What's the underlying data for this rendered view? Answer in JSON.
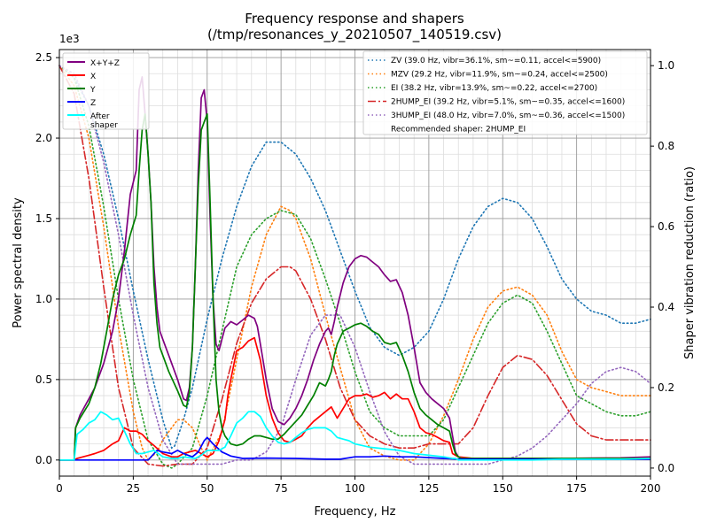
{
  "chart_data": {
    "type": "line",
    "title": "Frequency response and shapers",
    "subtitle": "(/tmp/resonances_y_20210507_140519.csv)",
    "xlabel": "Frequency, Hz",
    "ylabel": "Power spectral density",
    "y2label": "Shaper vibration reduction (ratio)",
    "xlim": [
      0,
      200
    ],
    "ylim": [
      -100,
      2550
    ],
    "y2lim": [
      -0.02,
      1.04
    ],
    "y_offset_label": "1e3",
    "x_ticks": [
      0,
      25,
      50,
      75,
      100,
      125,
      150,
      175,
      200
    ],
    "y_ticks": [
      0,
      500,
      1000,
      1500,
      2000,
      2500
    ],
    "y_tick_labels": [
      "0.0",
      "0.5",
      "1.0",
      "1.5",
      "2.0",
      "2.5"
    ],
    "y2_ticks": [
      0.0,
      0.2,
      0.4,
      0.6,
      0.8,
      1.0
    ],
    "y2_tick_labels": [
      "0.0",
      "0.2",
      "0.4",
      "0.6",
      "0.8",
      "1.0"
    ],
    "grid": true,
    "minor_grid": true,
    "legend_left_position": "top-left",
    "legend_right_position": "top-right",
    "legend_note": "Recommended shaper: 2HUMP_EI",
    "psd_series": [
      {
        "name": "X+Y+Z",
        "color": "#800080",
        "style": "solid",
        "x": [
          0,
          5,
          5.5,
          7,
          10,
          12,
          15,
          18,
          20,
          22,
          24,
          26,
          27,
          28,
          29,
          30,
          31,
          32,
          33,
          34,
          35,
          37,
          40,
          42,
          43,
          44,
          45,
          46,
          47,
          48,
          49,
          50,
          51,
          52,
          53,
          54,
          55,
          56,
          58,
          60,
          62,
          64,
          66,
          67,
          68,
          70,
          72,
          74,
          76,
          78,
          80,
          82,
          84,
          86,
          88,
          90,
          91,
          92,
          93,
          94,
          96,
          98,
          100,
          102,
          104,
          106,
          108,
          110,
          112,
          114,
          116,
          118,
          120,
          122,
          124,
          126,
          128,
          130,
          132,
          133,
          134,
          135,
          136,
          140,
          150,
          160,
          170,
          180,
          190,
          200
        ],
        "y": [
          0,
          0,
          200,
          280,
          380,
          450,
          600,
          800,
          1000,
          1300,
          1650,
          1800,
          2300,
          2380,
          2150,
          1900,
          1600,
          1200,
          950,
          800,
          750,
          650,
          500,
          380,
          370,
          450,
          700,
          1200,
          1800,
          2250,
          2300,
          2100,
          1500,
          1000,
          720,
          680,
          750,
          820,
          860,
          840,
          870,
          900,
          880,
          830,
          720,
          500,
          320,
          240,
          220,
          260,
          320,
          400,
          500,
          620,
          720,
          800,
          820,
          780,
          860,
          950,
          1100,
          1200,
          1250,
          1270,
          1260,
          1230,
          1200,
          1150,
          1110,
          1120,
          1040,
          900,
          700,
          480,
          420,
          380,
          350,
          320,
          260,
          150,
          50,
          20,
          10,
          10,
          10,
          10,
          10,
          12,
          14,
          20
        ]
      },
      {
        "name": "X",
        "color": "#ff0000",
        "style": "solid",
        "x": [
          0,
          5,
          6,
          8,
          10,
          12,
          15,
          18,
          20,
          22,
          24,
          26,
          28,
          30,
          32,
          35,
          38,
          40,
          42,
          44,
          46,
          48,
          50,
          52,
          54,
          56,
          57,
          58,
          60,
          62,
          64,
          66,
          68,
          70,
          72,
          74,
          76,
          78,
          80,
          82,
          84,
          86,
          88,
          90,
          92,
          94,
          96,
          98,
          100,
          102,
          104,
          106,
          108,
          110,
          112,
          114,
          116,
          118,
          120,
          122,
          124,
          126,
          128,
          130,
          132,
          133,
          134,
          135,
          140,
          150,
          160,
          170,
          180,
          190,
          200
        ],
        "y": [
          0,
          0,
          10,
          20,
          30,
          40,
          60,
          100,
          120,
          200,
          180,
          180,
          160,
          120,
          90,
          40,
          20,
          20,
          40,
          50,
          60,
          40,
          20,
          40,
          120,
          250,
          400,
          500,
          680,
          700,
          740,
          760,
          620,
          400,
          260,
          170,
          120,
          110,
          130,
          150,
          200,
          240,
          270,
          300,
          330,
          260,
          320,
          380,
          400,
          400,
          410,
          390,
          400,
          420,
          380,
          410,
          380,
          380,
          300,
          200,
          170,
          160,
          140,
          120,
          110,
          40,
          30,
          20,
          10,
          10,
          10,
          10,
          10,
          10,
          12
        ]
      },
      {
        "name": "Y",
        "color": "#008000",
        "style": "solid",
        "x": [
          0,
          5,
          5.5,
          7,
          10,
          12,
          14,
          16,
          18,
          20,
          22,
          24,
          26,
          27,
          28,
          29,
          30,
          31,
          32,
          33,
          34,
          35,
          37,
          40,
          42,
          43,
          44,
          45,
          46,
          47,
          48,
          49,
          50,
          51,
          52,
          53,
          54,
          55,
          56,
          58,
          60,
          62,
          64,
          66,
          68,
          70,
          72,
          74,
          76,
          78,
          80,
          82,
          84,
          86,
          88,
          90,
          91,
          92,
          93,
          94,
          96,
          98,
          100,
          102,
          104,
          106,
          108,
          110,
          112,
          114,
          116,
          118,
          120,
          122,
          124,
          126,
          128,
          130,
          132,
          133,
          134,
          135,
          136,
          140,
          150,
          160,
          170,
          180,
          190,
          200
        ],
        "y": [
          0,
          0,
          200,
          260,
          350,
          450,
          600,
          800,
          1000,
          1150,
          1250,
          1400,
          1520,
          1800,
          2050,
          2150,
          1900,
          1600,
          1100,
          850,
          700,
          650,
          550,
          430,
          340,
          330,
          420,
          700,
          1200,
          1700,
          2050,
          2100,
          2150,
          1600,
          1000,
          500,
          300,
          200,
          150,
          100,
          90,
          100,
          130,
          150,
          150,
          140,
          130,
          130,
          160,
          200,
          240,
          280,
          340,
          400,
          480,
          460,
          500,
          550,
          650,
          720,
          800,
          820,
          840,
          850,
          830,
          800,
          780,
          730,
          720,
          730,
          650,
          550,
          420,
          320,
          280,
          250,
          220,
          200,
          180,
          100,
          40,
          20,
          10,
          10,
          10,
          10,
          10,
          10,
          10,
          10
        ]
      },
      {
        "name": "Z",
        "color": "#0000ff",
        "style": "solid",
        "x": [
          0,
          5,
          10,
          20,
          30,
          33,
          35,
          38,
          40,
          42,
          45,
          47,
          49,
          50,
          52,
          55,
          58,
          62,
          70,
          80,
          90,
          95,
          100,
          105,
          110,
          115,
          120,
          130,
          135,
          150,
          200
        ],
        "y": [
          0,
          0,
          0,
          0,
          0,
          60,
          50,
          40,
          60,
          40,
          20,
          50,
          120,
          140,
          100,
          50,
          25,
          10,
          12,
          10,
          5,
          5,
          20,
          20,
          25,
          20,
          20,
          10,
          5,
          5,
          5
        ]
      },
      {
        "name": "After\nshaper",
        "color": "#00ffff",
        "style": "solid",
        "x": [
          0,
          5,
          6,
          8,
          10,
          12,
          14,
          16,
          18,
          20,
          22,
          24,
          26,
          28,
          30,
          32,
          35,
          38,
          40,
          42,
          44,
          46,
          48,
          50,
          52,
          54,
          56,
          58,
          60,
          62,
          64,
          66,
          68,
          70,
          72,
          74,
          76,
          78,
          80,
          82,
          84,
          86,
          88,
          90,
          92,
          94,
          96,
          98,
          100,
          105,
          110,
          115,
          120,
          125,
          130,
          133,
          134,
          135,
          140,
          150,
          160,
          170,
          180,
          190,
          200
        ],
        "y": [
          0,
          0,
          160,
          190,
          230,
          250,
          300,
          280,
          250,
          260,
          180,
          100,
          40,
          40,
          50,
          60,
          20,
          10,
          10,
          20,
          15,
          10,
          30,
          60,
          60,
          60,
          80,
          150,
          230,
          260,
          300,
          300,
          270,
          200,
          150,
          110,
          100,
          110,
          140,
          170,
          190,
          200,
          200,
          200,
          180,
          140,
          130,
          120,
          100,
          80,
          70,
          60,
          40,
          30,
          20,
          10,
          10,
          0,
          0,
          0,
          0,
          5,
          5,
          5,
          10
        ]
      }
    ],
    "shaper_series": [
      {
        "name": "ZV (39.0 Hz, vibr=36.1%, sm~=0.11, accel<=5900)",
        "color": "#1f77b4",
        "style": "dotted",
        "x": [
          0,
          5,
          10,
          15,
          20,
          25,
          30,
          35,
          38,
          39,
          42,
          45,
          50,
          55,
          60,
          65,
          70,
          75,
          80,
          85,
          90,
          95,
          100,
          105,
          110,
          115,
          120,
          125,
          130,
          135,
          140,
          145,
          150,
          155,
          160,
          165,
          170,
          175,
          180,
          185,
          190,
          195,
          200
        ],
        "y": [
          1.0,
          0.97,
          0.9,
          0.78,
          0.62,
          0.44,
          0.27,
          0.12,
          0.05,
          0.055,
          0.12,
          0.2,
          0.37,
          0.52,
          0.65,
          0.75,
          0.81,
          0.81,
          0.78,
          0.72,
          0.64,
          0.54,
          0.44,
          0.35,
          0.3,
          0.28,
          0.3,
          0.34,
          0.42,
          0.52,
          0.6,
          0.65,
          0.67,
          0.66,
          0.62,
          0.55,
          0.47,
          0.42,
          0.39,
          0.38,
          0.36,
          0.36,
          0.37
        ]
      },
      {
        "name": "MZV (29.2 Hz, vibr=11.9%, sm~=0.24, accel<=2500)",
        "color": "#ff7f0e",
        "style": "dotted",
        "x": [
          0,
          5,
          10,
          15,
          20,
          25,
          28,
          30,
          33,
          35,
          38,
          40,
          42,
          45,
          48,
          50,
          55,
          60,
          65,
          70,
          75,
          78,
          80,
          85,
          90,
          95,
          100,
          105,
          110,
          115,
          120,
          125,
          130,
          135,
          140,
          145,
          150,
          155,
          160,
          165,
          170,
          175,
          180,
          185,
          190,
          195,
          200
        ],
        "y": [
          1.0,
          0.95,
          0.82,
          0.6,
          0.35,
          0.14,
          0.05,
          0.02,
          0.04,
          0.07,
          0.1,
          0.12,
          0.12,
          0.1,
          0.05,
          0.02,
          0.09,
          0.27,
          0.45,
          0.58,
          0.65,
          0.64,
          0.62,
          0.52,
          0.38,
          0.25,
          0.12,
          0.05,
          0.03,
          0.02,
          0.02,
          0.06,
          0.13,
          0.22,
          0.32,
          0.4,
          0.44,
          0.45,
          0.43,
          0.38,
          0.29,
          0.22,
          0.2,
          0.19,
          0.18,
          0.18,
          0.18
        ]
      },
      {
        "name": "EI (38.2 Hz, vibr=13.9%, sm~=0.22, accel<=2700)",
        "color": "#2ca02c",
        "style": "dotted",
        "x": [
          0,
          5,
          10,
          15,
          20,
          25,
          30,
          35,
          38,
          40,
          45,
          50,
          55,
          60,
          65,
          70,
          75,
          80,
          85,
          90,
          95,
          100,
          105,
          110,
          115,
          120,
          125,
          130,
          135,
          140,
          145,
          150,
          155,
          160,
          165,
          170,
          175,
          180,
          185,
          190,
          195,
          200
        ],
        "y": [
          1.0,
          0.97,
          0.85,
          0.65,
          0.42,
          0.22,
          0.07,
          0.01,
          0.0,
          0.01,
          0.05,
          0.18,
          0.34,
          0.5,
          0.58,
          0.62,
          0.64,
          0.63,
          0.57,
          0.47,
          0.36,
          0.24,
          0.14,
          0.1,
          0.08,
          0.08,
          0.08,
          0.12,
          0.2,
          0.28,
          0.36,
          0.41,
          0.43,
          0.41,
          0.34,
          0.26,
          0.18,
          0.16,
          0.14,
          0.13,
          0.13,
          0.14
        ]
      },
      {
        "name": "2HUMP_EI (39.2 Hz, vibr=5.1%, sm~=0.35, accel<=1600)",
        "color": "#d62728",
        "style": "dashdot",
        "x": [
          0,
          5,
          10,
          15,
          20,
          25,
          30,
          35,
          40,
          45,
          50,
          55,
          60,
          65,
          70,
          75,
          78,
          80,
          85,
          90,
          95,
          100,
          105,
          110,
          115,
          120,
          125,
          130,
          135,
          140,
          145,
          150,
          155,
          160,
          165,
          170,
          175,
          180,
          185,
          190,
          195,
          200
        ],
        "y": [
          1.0,
          0.93,
          0.72,
          0.45,
          0.2,
          0.05,
          0.01,
          0.005,
          0.01,
          0.01,
          0.05,
          0.17,
          0.31,
          0.41,
          0.47,
          0.5,
          0.5,
          0.49,
          0.42,
          0.32,
          0.2,
          0.12,
          0.08,
          0.06,
          0.05,
          0.05,
          0.06,
          0.06,
          0.06,
          0.1,
          0.18,
          0.25,
          0.28,
          0.27,
          0.23,
          0.17,
          0.11,
          0.08,
          0.07,
          0.07,
          0.07,
          0.07
        ]
      },
      {
        "name": "3HUMP_EI (48.0 Hz, vibr=7.0%, sm~=0.36, accel<=1500)",
        "color": "#9467bd",
        "style": "dotted",
        "x": [
          0,
          5,
          10,
          15,
          20,
          25,
          30,
          35,
          40,
          45,
          50,
          55,
          60,
          65,
          70,
          75,
          80,
          85,
          90,
          95,
          100,
          105,
          110,
          115,
          120,
          125,
          130,
          135,
          140,
          145,
          150,
          155,
          160,
          165,
          170,
          175,
          180,
          185,
          190,
          195,
          200
        ],
        "y": [
          1.0,
          0.98,
          0.9,
          0.76,
          0.58,
          0.38,
          0.2,
          0.07,
          0.01,
          0.01,
          0.01,
          0.01,
          0.02,
          0.02,
          0.04,
          0.1,
          0.22,
          0.33,
          0.38,
          0.38,
          0.3,
          0.19,
          0.09,
          0.03,
          0.01,
          0.01,
          0.01,
          0.01,
          0.01,
          0.01,
          0.02,
          0.03,
          0.05,
          0.08,
          0.12,
          0.16,
          0.21,
          0.24,
          0.25,
          0.24,
          0.21
        ]
      }
    ]
  }
}
